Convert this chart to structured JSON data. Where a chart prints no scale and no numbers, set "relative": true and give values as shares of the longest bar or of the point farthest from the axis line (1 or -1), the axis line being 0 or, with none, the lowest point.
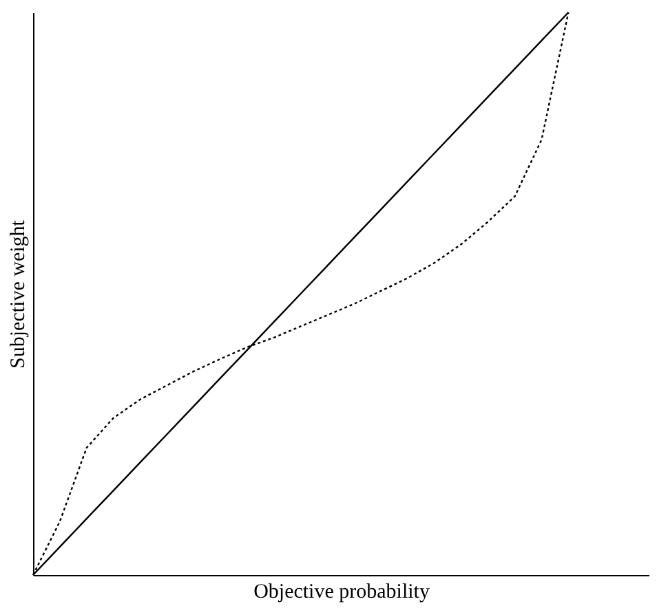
{
  "chart_data": {
    "type": "line",
    "relative": true,
    "xlabel": "Objective probability",
    "ylabel": "Subjective weight",
    "categories": [
      null,
      null,
      null,
      null,
      null,
      null,
      null,
      null,
      null,
      null,
      null,
      null,
      null,
      null,
      null,
      null,
      null,
      null,
      null,
      null,
      null,
      null,
      null,
      null
    ],
    "series": [
      {
        "color": "#000000",
        "line_style": "solid",
        "values": [
          0,
          0.05,
          0.1,
          0.15,
          0.2,
          0.25,
          0.3,
          0.35,
          0.4,
          0.45,
          0.5,
          0.55,
          0.6,
          0.65,
          0.7,
          0.75,
          0.8,
          0.85,
          0.9,
          0.95,
          1,
          null,
          null,
          null
        ]
      },
      {
        "color": "#000000",
        "line_style": "dotted",
        "values": [
          0,
          0.095,
          0.226,
          0.279,
          0.312,
          0.337,
          0.362,
          0.384,
          0.405,
          0.422,
          0.442,
          0.462,
          0.482,
          0.505,
          0.528,
          0.555,
          0.588,
          0.628,
          0.673,
          0.774,
          1,
          null,
          null,
          null
        ]
      }
    ],
    "grid": false,
    "tick_labels": false
  }
}
